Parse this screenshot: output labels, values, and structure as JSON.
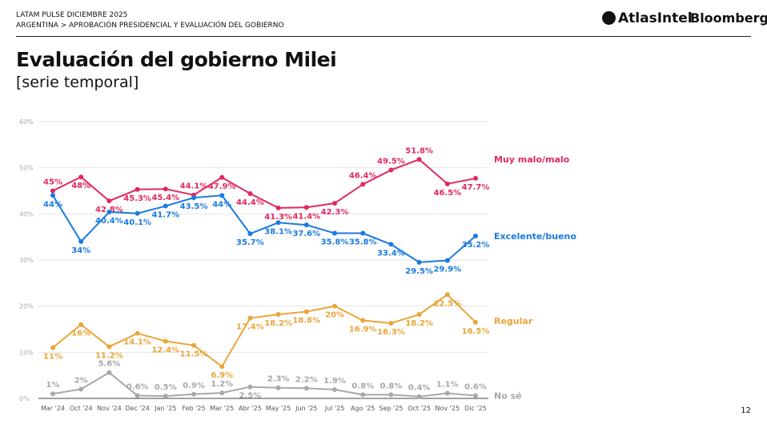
{
  "header": {
    "line1": "LATAM PULSE DICIEMBRE 2025",
    "line2": "ARGENTINA > APROBACIÓN PRESIDENCIAL Y EVALUACIÓN DEL GOBIERNO",
    "logo_atlas": "AtlasIntel",
    "logo_bloomberg": "Bloomberg"
  },
  "title": "Evaluación del gobierno Milei",
  "subtitle": "[serie temporal]",
  "page_number": "12",
  "chart_data": {
    "type": "line",
    "categories": [
      "Mar '24",
      "Oct '24",
      "Nov '24",
      "Dec '24",
      "Jan '25",
      "Feb '25",
      "Mar '25",
      "Abr '25",
      "May '25",
      "Jun '25",
      "Jul '25",
      "Ago '25",
      "Sep '25",
      "Oct '25",
      "Nov '25",
      "Dic '25"
    ],
    "ylim": [
      0,
      60
    ],
    "yticks": [
      "0%",
      "10%",
      "20%",
      "30%",
      "40%",
      "50%",
      "60%"
    ],
    "grid": true,
    "series": [
      {
        "name": "Muy malo/malo",
        "color": "#e0295f",
        "values": [
          45,
          48,
          42.8,
          45.3,
          45.4,
          44.1,
          47.9,
          44.4,
          41.3,
          41.4,
          42.3,
          46.4,
          49.5,
          51.8,
          46.5,
          47.7
        ]
      },
      {
        "name": "Excelente/bueno",
        "color": "#1a7be0",
        "values": [
          44,
          34,
          40.4,
          40.1,
          41.7,
          43.5,
          44,
          35.7,
          38.1,
          37.6,
          35.8,
          35.8,
          33.4,
          29.5,
          29.9,
          35.2
        ]
      },
      {
        "name": "Regular",
        "color": "#eaa53a",
        "values": [
          11,
          16,
          11.2,
          14.1,
          12.4,
          11.5,
          6.9,
          17.4,
          18.2,
          18.8,
          20,
          16.9,
          16.3,
          18.2,
          22.5,
          16.5
        ]
      },
      {
        "name": "No sé",
        "color": "#a8a8a8",
        "values": [
          1,
          2,
          5.6,
          0.6,
          0.5,
          0.9,
          1.2,
          2.5,
          2.3,
          2.2,
          1.9,
          0.8,
          0.8,
          0.4,
          1.1,
          0.6
        ]
      }
    ]
  }
}
